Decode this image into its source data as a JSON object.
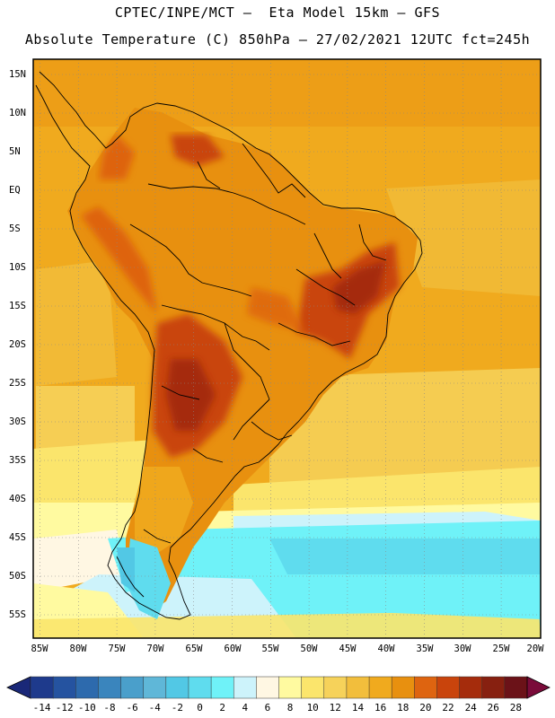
{
  "header": {
    "line1": "CPTEC/INPE/MCT –  Eta Model 15km – GFS",
    "line2": "Absolute Temperature (C) 850hPa – 27/02/2021 12UTC fct=245h"
  },
  "map": {
    "lat_labels": [
      "15N",
      "10N",
      "5N",
      "EQ",
      "5S",
      "10S",
      "15S",
      "20S",
      "25S",
      "30S",
      "35S",
      "40S",
      "45S",
      "50S",
      "55S"
    ],
    "lon_labels": [
      "85W",
      "80W",
      "75W",
      "70W",
      "65W",
      "60W",
      "55W",
      "50W",
      "45W",
      "40W",
      "35W",
      "30W",
      "25W",
      "20W"
    ],
    "lat_range": [
      16.5,
      -58.5
    ],
    "lon_range": [
      -85.5,
      -19.5
    ],
    "gridlines": "dotted",
    "field": "Absolute Temperature 850hPa",
    "units": "C"
  },
  "colorbar": {
    "labels": [
      "-14",
      "-12",
      "-10",
      "-8",
      "-6",
      "-4",
      "-2",
      "0",
      "2",
      "4",
      "6",
      "8",
      "10",
      "12",
      "14",
      "16",
      "18",
      "20",
      "22",
      "24",
      "26",
      "28"
    ],
    "colors": [
      "#1e3a8c",
      "#2553a0",
      "#2d6aad",
      "#3a85bd",
      "#4a9fcb",
      "#5fb7d8",
      "#52c8e5",
      "#5fdcee",
      "#6ff2f8",
      "#cdf3fb",
      "#fff7e3",
      "#fffaa0",
      "#fbe56c",
      "#f6d25a",
      "#f2be3c",
      "#f0aa1e",
      "#e8900f",
      "#de6410",
      "#c9440c",
      "#a52c0c",
      "#872010",
      "#6b1218"
    ],
    "under_color": "#1a2878",
    "over_color": "#7a0b3a"
  }
}
